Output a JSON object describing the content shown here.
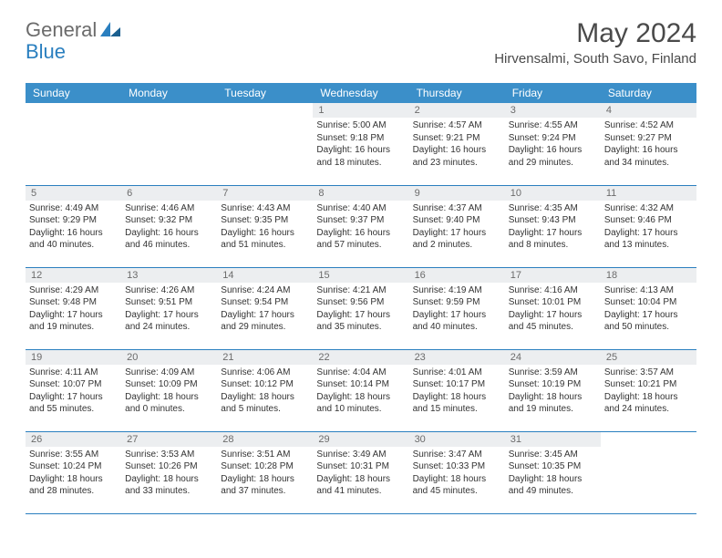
{
  "logo": {
    "text_general": "General",
    "text_blue": "Blue"
  },
  "header": {
    "month_title": "May 2024",
    "location": "Hirvensalmi, South Savo, Finland"
  },
  "colors": {
    "header_bg": "#3b8fc9",
    "header_text": "#ffffff",
    "day_num_bg": "#eceef0",
    "day_num_text": "#6b6b6b",
    "border": "#2a7fbf",
    "logo_gray": "#6b6b6b",
    "logo_blue": "#2a7fbf",
    "title_color": "#4a4a4a"
  },
  "weekdays": [
    "Sunday",
    "Monday",
    "Tuesday",
    "Wednesday",
    "Thursday",
    "Friday",
    "Saturday"
  ],
  "weeks": [
    [
      {
        "day": "",
        "sunrise": "",
        "sunset": "",
        "daylight": ""
      },
      {
        "day": "",
        "sunrise": "",
        "sunset": "",
        "daylight": ""
      },
      {
        "day": "",
        "sunrise": "",
        "sunset": "",
        "daylight": ""
      },
      {
        "day": "1",
        "sunrise": "Sunrise: 5:00 AM",
        "sunset": "Sunset: 9:18 PM",
        "daylight": "Daylight: 16 hours and 18 minutes."
      },
      {
        "day": "2",
        "sunrise": "Sunrise: 4:57 AM",
        "sunset": "Sunset: 9:21 PM",
        "daylight": "Daylight: 16 hours and 23 minutes."
      },
      {
        "day": "3",
        "sunrise": "Sunrise: 4:55 AM",
        "sunset": "Sunset: 9:24 PM",
        "daylight": "Daylight: 16 hours and 29 minutes."
      },
      {
        "day": "4",
        "sunrise": "Sunrise: 4:52 AM",
        "sunset": "Sunset: 9:27 PM",
        "daylight": "Daylight: 16 hours and 34 minutes."
      }
    ],
    [
      {
        "day": "5",
        "sunrise": "Sunrise: 4:49 AM",
        "sunset": "Sunset: 9:29 PM",
        "daylight": "Daylight: 16 hours and 40 minutes."
      },
      {
        "day": "6",
        "sunrise": "Sunrise: 4:46 AM",
        "sunset": "Sunset: 9:32 PM",
        "daylight": "Daylight: 16 hours and 46 minutes."
      },
      {
        "day": "7",
        "sunrise": "Sunrise: 4:43 AM",
        "sunset": "Sunset: 9:35 PM",
        "daylight": "Daylight: 16 hours and 51 minutes."
      },
      {
        "day": "8",
        "sunrise": "Sunrise: 4:40 AM",
        "sunset": "Sunset: 9:37 PM",
        "daylight": "Daylight: 16 hours and 57 minutes."
      },
      {
        "day": "9",
        "sunrise": "Sunrise: 4:37 AM",
        "sunset": "Sunset: 9:40 PM",
        "daylight": "Daylight: 17 hours and 2 minutes."
      },
      {
        "day": "10",
        "sunrise": "Sunrise: 4:35 AM",
        "sunset": "Sunset: 9:43 PM",
        "daylight": "Daylight: 17 hours and 8 minutes."
      },
      {
        "day": "11",
        "sunrise": "Sunrise: 4:32 AM",
        "sunset": "Sunset: 9:46 PM",
        "daylight": "Daylight: 17 hours and 13 minutes."
      }
    ],
    [
      {
        "day": "12",
        "sunrise": "Sunrise: 4:29 AM",
        "sunset": "Sunset: 9:48 PM",
        "daylight": "Daylight: 17 hours and 19 minutes."
      },
      {
        "day": "13",
        "sunrise": "Sunrise: 4:26 AM",
        "sunset": "Sunset: 9:51 PM",
        "daylight": "Daylight: 17 hours and 24 minutes."
      },
      {
        "day": "14",
        "sunrise": "Sunrise: 4:24 AM",
        "sunset": "Sunset: 9:54 PM",
        "daylight": "Daylight: 17 hours and 29 minutes."
      },
      {
        "day": "15",
        "sunrise": "Sunrise: 4:21 AM",
        "sunset": "Sunset: 9:56 PM",
        "daylight": "Daylight: 17 hours and 35 minutes."
      },
      {
        "day": "16",
        "sunrise": "Sunrise: 4:19 AM",
        "sunset": "Sunset: 9:59 PM",
        "daylight": "Daylight: 17 hours and 40 minutes."
      },
      {
        "day": "17",
        "sunrise": "Sunrise: 4:16 AM",
        "sunset": "Sunset: 10:01 PM",
        "daylight": "Daylight: 17 hours and 45 minutes."
      },
      {
        "day": "18",
        "sunrise": "Sunrise: 4:13 AM",
        "sunset": "Sunset: 10:04 PM",
        "daylight": "Daylight: 17 hours and 50 minutes."
      }
    ],
    [
      {
        "day": "19",
        "sunrise": "Sunrise: 4:11 AM",
        "sunset": "Sunset: 10:07 PM",
        "daylight": "Daylight: 17 hours and 55 minutes."
      },
      {
        "day": "20",
        "sunrise": "Sunrise: 4:09 AM",
        "sunset": "Sunset: 10:09 PM",
        "daylight": "Daylight: 18 hours and 0 minutes."
      },
      {
        "day": "21",
        "sunrise": "Sunrise: 4:06 AM",
        "sunset": "Sunset: 10:12 PM",
        "daylight": "Daylight: 18 hours and 5 minutes."
      },
      {
        "day": "22",
        "sunrise": "Sunrise: 4:04 AM",
        "sunset": "Sunset: 10:14 PM",
        "daylight": "Daylight: 18 hours and 10 minutes."
      },
      {
        "day": "23",
        "sunrise": "Sunrise: 4:01 AM",
        "sunset": "Sunset: 10:17 PM",
        "daylight": "Daylight: 18 hours and 15 minutes."
      },
      {
        "day": "24",
        "sunrise": "Sunrise: 3:59 AM",
        "sunset": "Sunset: 10:19 PM",
        "daylight": "Daylight: 18 hours and 19 minutes."
      },
      {
        "day": "25",
        "sunrise": "Sunrise: 3:57 AM",
        "sunset": "Sunset: 10:21 PM",
        "daylight": "Daylight: 18 hours and 24 minutes."
      }
    ],
    [
      {
        "day": "26",
        "sunrise": "Sunrise: 3:55 AM",
        "sunset": "Sunset: 10:24 PM",
        "daylight": "Daylight: 18 hours and 28 minutes."
      },
      {
        "day": "27",
        "sunrise": "Sunrise: 3:53 AM",
        "sunset": "Sunset: 10:26 PM",
        "daylight": "Daylight: 18 hours and 33 minutes."
      },
      {
        "day": "28",
        "sunrise": "Sunrise: 3:51 AM",
        "sunset": "Sunset: 10:28 PM",
        "daylight": "Daylight: 18 hours and 37 minutes."
      },
      {
        "day": "29",
        "sunrise": "Sunrise: 3:49 AM",
        "sunset": "Sunset: 10:31 PM",
        "daylight": "Daylight: 18 hours and 41 minutes."
      },
      {
        "day": "30",
        "sunrise": "Sunrise: 3:47 AM",
        "sunset": "Sunset: 10:33 PM",
        "daylight": "Daylight: 18 hours and 45 minutes."
      },
      {
        "day": "31",
        "sunrise": "Sunrise: 3:45 AM",
        "sunset": "Sunset: 10:35 PM",
        "daylight": "Daylight: 18 hours and 49 minutes."
      },
      {
        "day": "",
        "sunrise": "",
        "sunset": "",
        "daylight": ""
      }
    ]
  ]
}
